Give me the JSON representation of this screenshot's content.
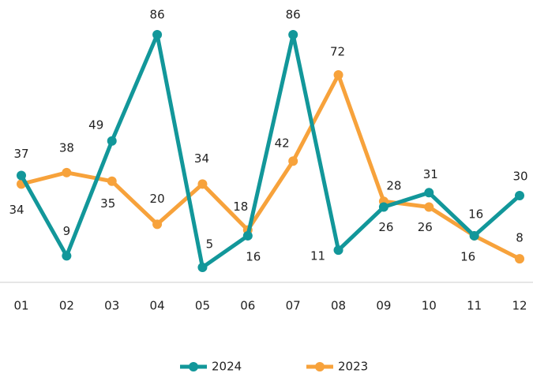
{
  "chart_data": {
    "type": "line",
    "categories": [
      "01",
      "02",
      "03",
      "04",
      "05",
      "06",
      "07",
      "08",
      "09",
      "10",
      "11",
      "12"
    ],
    "series": [
      {
        "name": "2024",
        "color": "#12979a",
        "values": [
          37,
          9,
          49,
          86,
          5,
          16,
          86,
          11,
          26,
          31,
          16,
          30
        ]
      },
      {
        "name": "2023",
        "color": "#f7a23b",
        "values": [
          34,
          38,
          35,
          20,
          34,
          18,
          42,
          72,
          28,
          26,
          16,
          8
        ]
      }
    ],
    "legend": "bottom"
  }
}
